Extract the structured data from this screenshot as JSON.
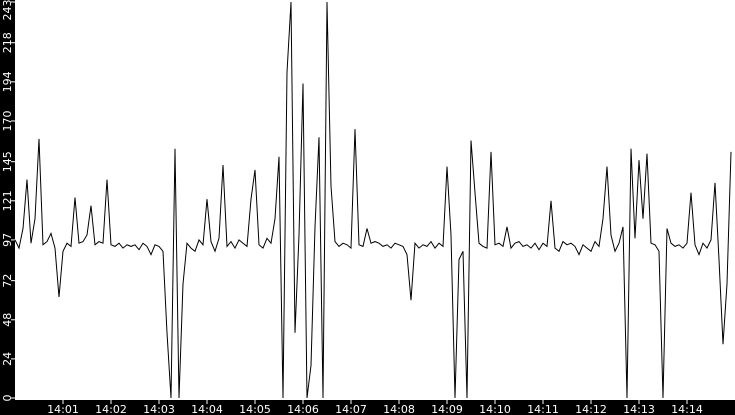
{
  "chart_data": {
    "type": "line",
    "title": "",
    "xlabel": "",
    "ylabel": "",
    "ylim": [
      0,
      243
    ],
    "grid": false,
    "y_ticks": [
      "0",
      "24",
      "48",
      "72",
      "97",
      "121",
      "145",
      "170",
      "194",
      "218",
      "243"
    ],
    "x_ticks": [
      "14:01",
      "14:02",
      "14:03",
      "14:04",
      "14:05",
      "14:06",
      "14:07",
      "14:08",
      "14:09",
      "14:10",
      "14:11",
      "14:12",
      "14:13",
      "14:14"
    ],
    "colors": {
      "line": "#000000",
      "plot_bg": "#ffffff",
      "axis_bg": "#000000",
      "axis_text": "#ffffff"
    },
    "x": [
      "14:00:00",
      "14:00:05",
      "14:00:10",
      "14:00:15",
      "14:00:20",
      "14:00:25",
      "14:00:30",
      "14:00:35",
      "14:00:40",
      "14:00:45",
      "14:00:50",
      "14:00:55",
      "14:01:00",
      "14:01:05",
      "14:01:10",
      "14:01:15",
      "14:01:20",
      "14:01:25",
      "14:01:30",
      "14:01:35",
      "14:01:40",
      "14:01:45",
      "14:01:50",
      "14:01:55",
      "14:02:00",
      "14:02:05",
      "14:02:10",
      "14:02:15",
      "14:02:20",
      "14:02:25",
      "14:02:30",
      "14:02:35",
      "14:02:40",
      "14:02:45",
      "14:02:50",
      "14:02:55",
      "14:03:00",
      "14:03:05",
      "14:03:10",
      "14:03:15",
      "14:03:20",
      "14:03:25",
      "14:03:30",
      "14:03:35",
      "14:03:40",
      "14:03:45",
      "14:03:50",
      "14:03:55",
      "14:04:00",
      "14:04:05",
      "14:04:10",
      "14:04:15",
      "14:04:20",
      "14:04:25",
      "14:04:30",
      "14:04:35",
      "14:04:40",
      "14:04:45",
      "14:04:50",
      "14:04:55",
      "14:05:00",
      "14:05:05",
      "14:05:10",
      "14:05:15",
      "14:05:20",
      "14:05:25",
      "14:05:30",
      "14:05:35",
      "14:05:40",
      "14:05:45",
      "14:05:50",
      "14:05:55",
      "14:06:00",
      "14:06:05",
      "14:06:10",
      "14:06:15",
      "14:06:20",
      "14:06:25",
      "14:06:30",
      "14:06:35",
      "14:06:40",
      "14:06:45",
      "14:06:50",
      "14:06:55",
      "14:07:00",
      "14:07:05",
      "14:07:10",
      "14:07:15",
      "14:07:20",
      "14:07:25",
      "14:07:30",
      "14:07:35",
      "14:07:40",
      "14:07:45",
      "14:07:50",
      "14:07:55",
      "14:08:00",
      "14:08:05",
      "14:08:10",
      "14:08:15",
      "14:08:20",
      "14:08:25",
      "14:08:30",
      "14:08:35",
      "14:08:40",
      "14:08:45",
      "14:08:50",
      "14:08:55",
      "14:09:00",
      "14:09:05",
      "14:09:10",
      "14:09:15",
      "14:09:20",
      "14:09:25",
      "14:09:30",
      "14:09:35",
      "14:09:40",
      "14:09:45",
      "14:09:50",
      "14:09:55",
      "14:10:00",
      "14:10:05",
      "14:10:10",
      "14:10:15",
      "14:10:20",
      "14:10:25",
      "14:10:30",
      "14:10:35",
      "14:10:40",
      "14:10:45",
      "14:10:50",
      "14:10:55",
      "14:11:00",
      "14:11:05",
      "14:11:10",
      "14:11:15",
      "14:11:20",
      "14:11:25",
      "14:11:30",
      "14:11:35",
      "14:11:40",
      "14:11:45",
      "14:11:50",
      "14:11:55",
      "14:12:00",
      "14:12:05",
      "14:12:10",
      "14:12:15",
      "14:12:20",
      "14:12:25",
      "14:12:30",
      "14:12:35",
      "14:12:40",
      "14:12:45",
      "14:12:50",
      "14:12:55",
      "14:13:00",
      "14:13:05",
      "14:13:10",
      "14:13:15",
      "14:13:20",
      "14:13:25",
      "14:13:30",
      "14:13:35",
      "14:13:40",
      "14:13:45",
      "14:13:50",
      "14:13:55",
      "14:14:00",
      "14:14:05",
      "14:14:10",
      "14:14:15",
      "14:14:20",
      "14:14:25",
      "14:14:30",
      "14:14:35",
      "14:14:40",
      "14:14:45",
      "14:14:50",
      "14:14:55"
    ],
    "series": [
      {
        "values": [
          97,
          92,
          104,
          134,
          95,
          110,
          159,
          94,
          96,
          101,
          92,
          62,
          90,
          95,
          93,
          123,
          95,
          96,
          100,
          118,
          94,
          96,
          95,
          134,
          94,
          93,
          95,
          92,
          94,
          93,
          94,
          91,
          95,
          93,
          88,
          94,
          93,
          90,
          40,
          0,
          153,
          0,
          70,
          95,
          92,
          90,
          97,
          94,
          122,
          96,
          90,
          98,
          143,
          93,
          96,
          92,
          97,
          95,
          93,
          122,
          140,
          94,
          92,
          98,
          95,
          110,
          148,
          0,
          200,
          243,
          40,
          100,
          193,
          0,
          20,
          105,
          160,
          0,
          243,
          130,
          96,
          93,
          95,
          94,
          92,
          165,
          94,
          93,
          104,
          95,
          96,
          95,
          93,
          94,
          92,
          95,
          94,
          93,
          88,
          60,
          95,
          92,
          94,
          93,
          96,
          92,
          95,
          93,
          142,
          100,
          0,
          85,
          90,
          0,
          158,
          126,
          95,
          93,
          92,
          151,
          94,
          95,
          93,
          105,
          92,
          95,
          96,
          93,
          94,
          92,
          95,
          91,
          95,
          93,
          121,
          92,
          90,
          96,
          94,
          95,
          93,
          88,
          94,
          92,
          90,
          96,
          93,
          110,
          142,
          100,
          90,
          95,
          105,
          0,
          153,
          98,
          146,
          110,
          150,
          95,
          94,
          90,
          0,
          104,
          95,
          93,
          94,
          92,
          95,
          126,
          94,
          88,
          95,
          92,
          97,
          132,
          85,
          33,
          70,
          151
        ]
      }
    ]
  }
}
